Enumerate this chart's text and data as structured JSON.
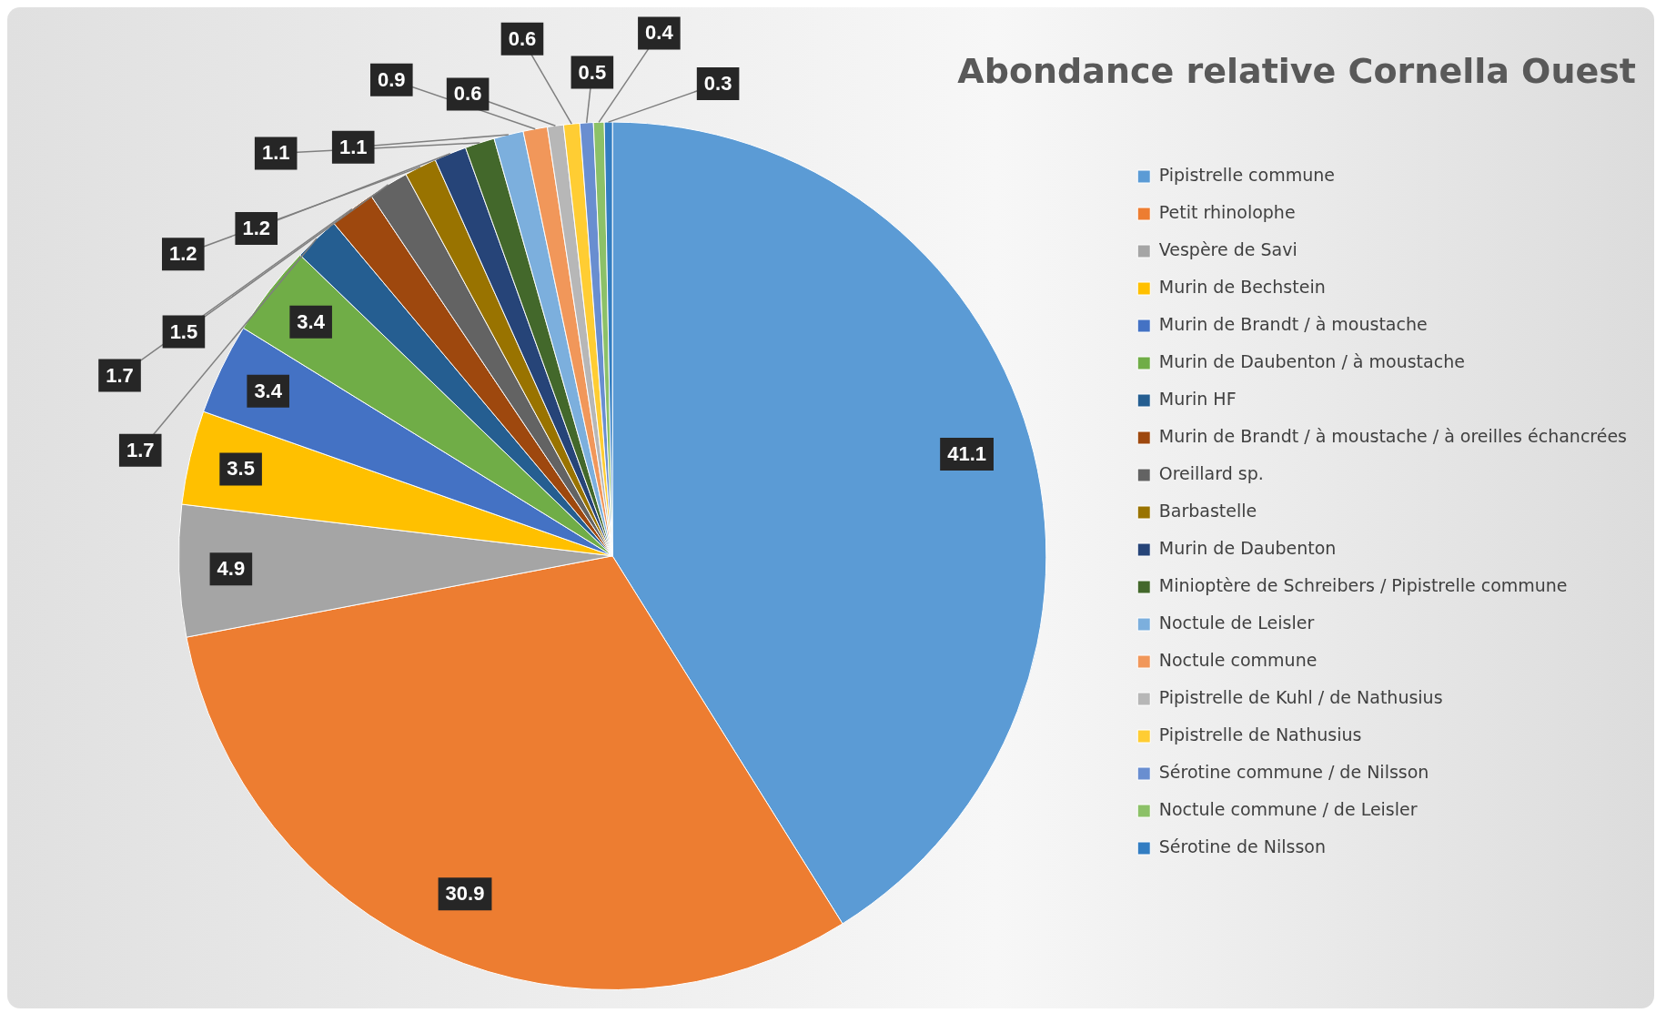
{
  "chart_data": {
    "type": "pie",
    "title": "Abondance relative Cornella Ouest",
    "categories": [
      "Pipistrelle commune",
      "Petit rhinolophe",
      "Vespère de Savi",
      "Murin de Bechstein",
      "Murin de Brandt / à moustache",
      "Murin de Daubenton / à moustache",
      "Murin HF",
      "Murin de Brandt / à moustache / à oreilles échancrées",
      "Oreillard sp.",
      "Barbastelle",
      "Murin de Daubenton",
      "Minioptère de Schreibers / Pipistrelle commune",
      "Noctule de Leisler",
      "Noctule commune",
      "Pipistrelle de Kuhl / de Nathusius",
      "Pipistrelle de Nathusius",
      "Sérotine commune / de Nilsson",
      "Noctule commune / de Leisler",
      "Sérotine de Nilsson"
    ],
    "values": [
      41.1,
      30.9,
      4.9,
      3.5,
      3.4,
      3.4,
      1.7,
      1.7,
      1.5,
      1.2,
      1.2,
      1.1,
      1.1,
      0.9,
      0.6,
      0.6,
      0.5,
      0.4,
      0.3
    ],
    "colors": [
      "#5b9bd5",
      "#ed7d31",
      "#a5a5a5",
      "#ffc000",
      "#4472c4",
      "#70ad47",
      "#255e91",
      "#9e480e",
      "#636363",
      "#997300",
      "#264478",
      "#43682b",
      "#7cafdd",
      "#f1975a",
      "#b7b7b7",
      "#ffcd33",
      "#698ed0",
      "#8cc168",
      "#327dc2"
    ],
    "data_labels": true,
    "legend": "right"
  }
}
